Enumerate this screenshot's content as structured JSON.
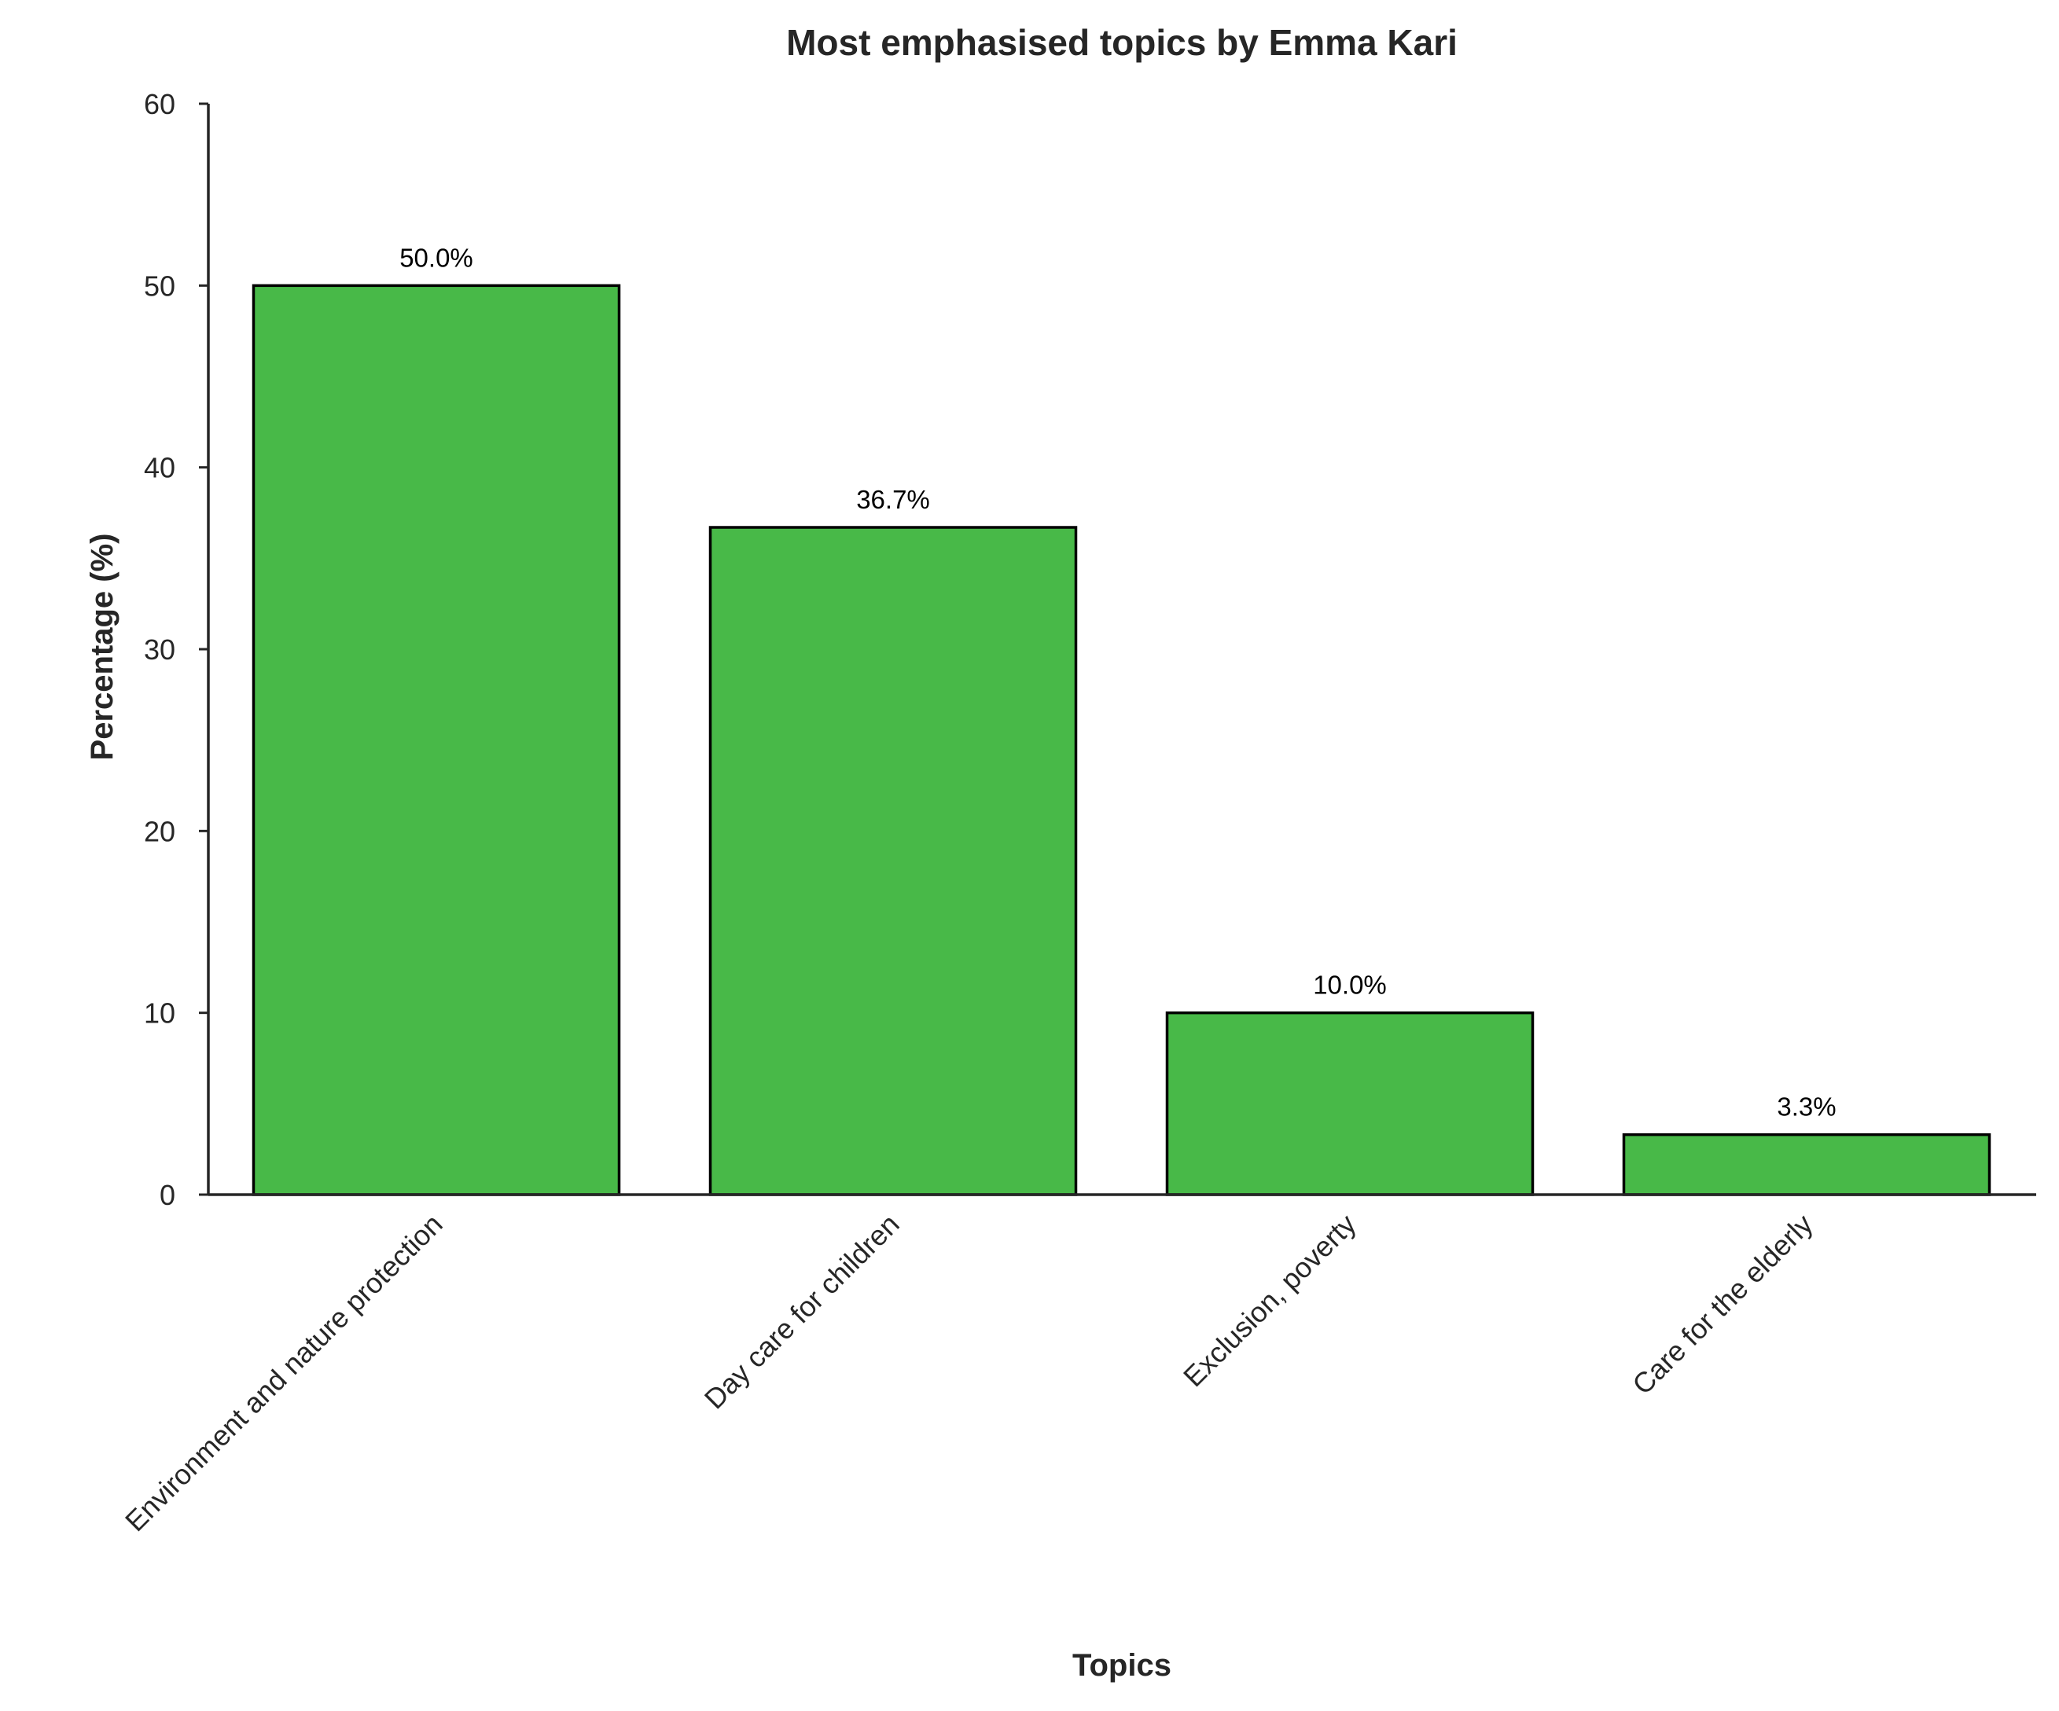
{
  "chart_data": {
    "type": "bar",
    "title": "Most emphasised topics by Emma Kari",
    "xlabel": "Topics",
    "ylabel": "Percentage (%)",
    "categories": [
      "Environment and nature protection",
      "Day care for children",
      "Exclusion, poverty",
      "Care for the elderly"
    ],
    "values": [
      50.0,
      36.7,
      10.0,
      3.3
    ],
    "data_labels": [
      "50.0%",
      "36.7%",
      "10.0%",
      "3.3%"
    ],
    "ylim": [
      0,
      60
    ],
    "yticks": [
      0,
      10,
      20,
      30,
      40,
      50,
      60
    ],
    "grid": false,
    "legend": "none",
    "bar_color": "#48b948",
    "bar_edge_color": "#000000"
  }
}
